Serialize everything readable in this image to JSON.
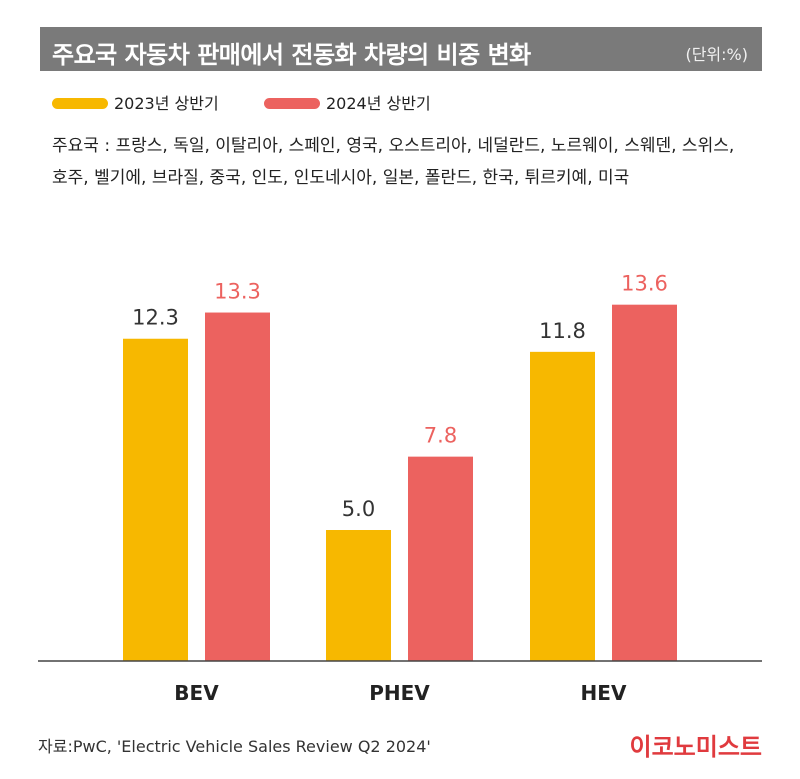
{
  "header": {
    "title": "주요국 자동차 판매에서 전동화 차량의 비중 변화",
    "unit": "(단위:%)"
  },
  "note": "주요국 : 프랑스, 독일, 이탈리아, 스페인, 영국, 오스트리아, 네덜란드, 노르웨이, 스웨덴, 스위스, 호주, 벨기에, 브라질, 중국, 인도, 인도네시아, 일본, 폴란드, 한국, 튀르키예, 미국",
  "footer": {
    "source": "자료:PwC, 'Electric Vehicle Sales Review Q2 2024'",
    "brand": "이코노미스트"
  },
  "colors": {
    "series_2023": "#f7b800",
    "series_2024": "#ec625f",
    "label_2023": "#333333",
    "label_2024": "#ec625f",
    "header_bg": "#7a7a7a"
  },
  "chart_data": {
    "type": "bar",
    "categories": [
      "BEV",
      "PHEV",
      "HEV"
    ],
    "series": [
      {
        "name": "2023년 상반기",
        "values": [
          12.3,
          5.0,
          11.8
        ]
      },
      {
        "name": "2024년 상반기",
        "values": [
          13.3,
          7.8,
          13.6
        ]
      }
    ],
    "data_labels": [
      [
        "12.3",
        "5.0",
        "11.8"
      ],
      [
        "13.3",
        "7.8",
        "13.6"
      ]
    ],
    "ylim": [
      0,
      16
    ],
    "legend": "top-left",
    "grid": false
  }
}
